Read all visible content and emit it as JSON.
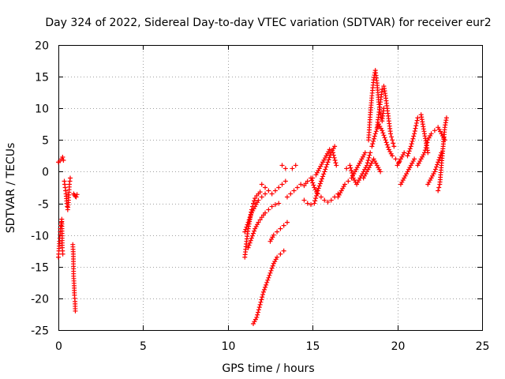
{
  "chart_data": {
    "type": "scatter",
    "title": "Day 324 of 2022, Sidereal Day-to-day VTEC variation (SDTVAR) for receiver eur2",
    "xlabel": "GPS time / hours",
    "ylabel": "SDTVAR / TECUs",
    "xlim": [
      0,
      25
    ],
    "ylim": [
      -25,
      20
    ],
    "xticks": [
      0,
      5,
      10,
      15,
      20,
      25
    ],
    "yticks": [
      -25,
      -20,
      -15,
      -10,
      -5,
      0,
      5,
      10,
      15,
      20
    ],
    "grid": true,
    "marker": "+",
    "series": [
      {
        "name": "SDTVAR",
        "color": "#ff0000",
        "segments": [
          {
            "x": [
              0.0,
              0.1,
              0.2,
              0.25,
              0.3
            ],
            "y": [
              1.5,
              1.7,
              2.0,
              2.3,
              1.8
            ]
          },
          {
            "x": [
              0.0,
              0.03,
              0.06,
              0.1,
              0.12,
              0.15,
              0.18,
              0.2,
              0.23,
              0.26
            ],
            "y": [
              -13.5,
              -12.5,
              -11.0,
              -10.0,
              -9.0,
              -8.5,
              -8.0,
              -7.5,
              -12.0,
              -13.0
            ]
          },
          {
            "x": [
              0.35,
              0.4,
              0.45,
              0.5,
              0.55,
              0.6,
              0.65,
              0.7
            ],
            "y": [
              -1.5,
              -2.5,
              -3.5,
              -5.0,
              -6.0,
              -4.5,
              -2.0,
              -1.0
            ]
          },
          {
            "x": [
              0.9,
              0.95,
              1.0,
              1.05,
              1.1
            ],
            "y": [
              -3.5,
              -3.7,
              -3.9,
              -4.0,
              -3.6
            ]
          },
          {
            "x": [
              0.85,
              0.88,
              0.9,
              0.93,
              0.95,
              0.98,
              1.0
            ],
            "y": [
              -11.5,
              -13.0,
              -16.5,
              -18.0,
              -19.5,
              -20.5,
              -22.0
            ]
          },
          {
            "x": [
              11.0,
              11.1,
              11.2,
              11.3,
              11.4,
              11.5,
              11.6,
              11.7,
              11.8,
              11.9
            ],
            "y": [
              -13.5,
              -11.0,
              -9.0,
              -7.5,
              -6.0,
              -5.0,
              -4.2,
              -3.8,
              -3.5,
              -3.2
            ]
          },
          {
            "x": [
              11.0,
              11.2,
              11.4,
              11.6,
              11.8,
              12.0,
              12.2
            ],
            "y": [
              -9.5,
              -8.0,
              -6.5,
              -5.5,
              -4.5,
              -4.0,
              -3.5
            ]
          },
          {
            "x": [
              11.2,
              11.4,
              11.6,
              11.8,
              12.0,
              12.2,
              12.4,
              12.6,
              12.8,
              13.0
            ],
            "y": [
              -12.0,
              -10.5,
              -9.0,
              -8.0,
              -7.2,
              -6.5,
              -6.0,
              -5.5,
              -5.2,
              -5.0
            ]
          },
          {
            "x": [
              12.0,
              12.2,
              12.4,
              12.6,
              12.8,
              13.0,
              13.2,
              13.4
            ],
            "y": [
              -2.0,
              -2.5,
              -3.0,
              -3.5,
              -3.0,
              -2.5,
              -2.0,
              -1.5
            ]
          },
          {
            "x": [
              11.5,
              11.7,
              11.9,
              12.1,
              12.3,
              12.5,
              12.7,
              12.9,
              13.1,
              13.3
            ],
            "y": [
              -24.0,
              -23.0,
              -21.0,
              -19.0,
              -17.5,
              -16.0,
              -14.5,
              -13.5,
              -13.0,
              -12.5
            ]
          },
          {
            "x": [
              12.5,
              12.7,
              12.9,
              13.1,
              13.3,
              13.5
            ],
            "y": [
              -11.0,
              -10.0,
              -9.5,
              -9.0,
              -8.5,
              -8.0
            ]
          },
          {
            "x": [
              13.2,
              13.4
            ],
            "y": [
              1.0,
              0.5
            ]
          },
          {
            "x": [
              13.8,
              14.0
            ],
            "y": [
              0.5,
              1.0
            ]
          },
          {
            "x": [
              13.5,
              13.7,
              13.9,
              14.1,
              14.3,
              14.5,
              14.7,
              14.9,
              15.1,
              15.3,
              15.5,
              15.7,
              15.9,
              16.1,
              16.3,
              16.5
            ],
            "y": [
              -4.0,
              -3.5,
              -3.0,
              -2.5,
              -2.0,
              -2.2,
              -1.5,
              -1.0,
              -2.5,
              -3.5,
              -4.0,
              -4.5,
              -4.8,
              -4.5,
              -4.0,
              -3.5
            ]
          },
          {
            "x": [
              14.5,
              14.7,
              14.9,
              15.1,
              15.3,
              15.5,
              15.7,
              15.9,
              16.1,
              16.3
            ],
            "y": [
              -4.5,
              -5.0,
              -5.2,
              -5.0,
              -3.0,
              -1.5,
              0.0,
              1.5,
              3.0,
              4.0
            ]
          },
          {
            "x": [
              15.0,
              15.2,
              15.4,
              15.6,
              15.8,
              16.0,
              16.2,
              16.4
            ],
            "y": [
              -1.0,
              -0.5,
              0.5,
              1.5,
              2.5,
              3.5,
              3.0,
              1.0
            ]
          },
          {
            "x": [
              16.5,
              16.7,
              16.9,
              17.1,
              17.3,
              17.5,
              17.7,
              17.9,
              18.1
            ],
            "y": [
              -4.0,
              -3.0,
              -2.0,
              -1.5,
              -1.0,
              0.0,
              1.0,
              2.0,
              3.0
            ]
          },
          {
            "x": [
              17.0,
              17.2,
              17.4,
              17.6,
              17.8,
              18.0,
              18.2,
              18.4
            ],
            "y": [
              0.5,
              1.0,
              -1.0,
              -2.0,
              -1.0,
              0.0,
              1.0,
              3.0
            ]
          },
          {
            "x": [
              18.3,
              18.4,
              18.5,
              18.6,
              18.7,
              18.8,
              18.9,
              19.0,
              19.1,
              19.2
            ],
            "y": [
              5.0,
              9.0,
              12.0,
              14.5,
              16.0,
              14.0,
              11.0,
              9.0,
              8.0,
              10.0
            ]
          },
          {
            "x": [
              18.8,
              18.9,
              19.0,
              19.1,
              19.2,
              19.3,
              19.4,
              19.5,
              19.6,
              19.7,
              19.8
            ],
            "y": [
              7.0,
              9.0,
              11.0,
              13.0,
              13.5,
              12.0,
              10.0,
              8.0,
              6.0,
              5.0,
              4.0
            ]
          },
          {
            "x": [
              18.5,
              18.7,
              18.9,
              19.1,
              19.3,
              19.5,
              19.7,
              19.9,
              20.1
            ],
            "y": [
              4.0,
              6.0,
              7.5,
              6.5,
              5.0,
              3.5,
              2.5,
              2.0,
              1.5
            ]
          },
          {
            "x": [
              18.0,
              18.2,
              18.4,
              18.6,
              18.8,
              19.0
            ],
            "y": [
              -1.0,
              0.0,
              1.0,
              2.0,
              1.0,
              0.0
            ]
          },
          {
            "x": [
              20.0,
              20.2,
              20.4,
              20.6,
              20.8,
              21.0,
              21.2,
              21.4,
              21.6,
              21.8
            ],
            "y": [
              1.0,
              2.0,
              3.0,
              2.5,
              4.0,
              6.0,
              8.5,
              9.0,
              6.0,
              3.0
            ]
          },
          {
            "x": [
              20.2,
              20.4,
              20.6,
              20.8,
              21.0
            ],
            "y": [
              -2.0,
              -1.0,
              0.0,
              1.0,
              2.0
            ]
          },
          {
            "x": [
              21.2,
              21.4,
              21.6,
              21.8,
              22.0,
              22.2,
              22.4,
              22.6,
              22.8
            ],
            "y": [
              1.0,
              2.0,
              3.0,
              5.0,
              6.0,
              6.5,
              7.0,
              6.0,
              5.0
            ]
          },
          {
            "x": [
              21.8,
              22.0,
              22.2,
              22.4,
              22.6
            ],
            "y": [
              -2.0,
              -1.0,
              0.0,
              1.5,
              3.0
            ]
          },
          {
            "x": [
              22.4,
              22.5,
              22.6,
              22.7,
              22.8,
              22.9
            ],
            "y": [
              -3.0,
              -2.0,
              1.0,
              4.0,
              7.0,
              8.5
            ]
          }
        ]
      }
    ]
  }
}
